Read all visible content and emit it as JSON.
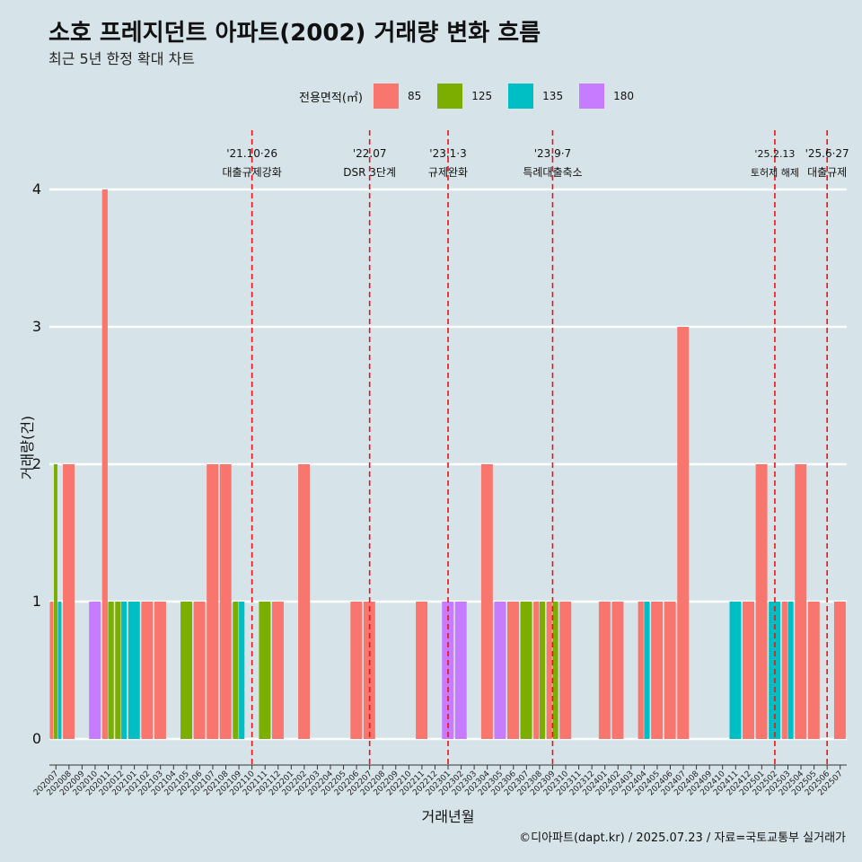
{
  "title": "소호 프레지던트 아파트(2002) 거래량 변화 흐름",
  "subtitle": "최근 5년 한정 확대 차트",
  "caption": "©디아파트(dapt.kr) / 2025.07.23 / 자료=국토교통부 실거래가",
  "legend": {
    "title": "전용면적(㎡)",
    "items": [
      {
        "label": "85",
        "color": "#f8766d"
      },
      {
        "label": "125",
        "color": "#7cae00"
      },
      {
        "label": "135",
        "color": "#00bfc4"
      },
      {
        "label": "180",
        "color": "#c77cff"
      }
    ]
  },
  "chart_data": {
    "type": "bar",
    "xlabel": "거래년월",
    "ylabel": "거래량(건)",
    "ylim": [
      0,
      4
    ],
    "yticks": [
      0,
      1,
      2,
      3,
      4
    ],
    "grid": true,
    "categories": [
      "202007",
      "202008",
      "202009",
      "202010",
      "202011",
      "202012",
      "202101",
      "202102",
      "202103",
      "202104",
      "202105",
      "202106",
      "202107",
      "202108",
      "202109",
      "202110",
      "202111",
      "202112",
      "202201",
      "202202",
      "202203",
      "202204",
      "202205",
      "202206",
      "202207",
      "202208",
      "202209",
      "202210",
      "202211",
      "202212",
      "202301",
      "202302",
      "202303",
      "202304",
      "202305",
      "202306",
      "202307",
      "202308",
      "202309",
      "202310",
      "202311",
      "202312",
      "202401",
      "202402",
      "202403",
      "202404",
      "202405",
      "202406",
      "202407",
      "202408",
      "202409",
      "202410",
      "202411",
      "202412",
      "202501",
      "202502",
      "202503",
      "202504",
      "202505",
      "202506",
      "202507"
    ],
    "series": [
      {
        "name": "85",
        "values": [
          1,
          2,
          0,
          0,
          4,
          0,
          0,
          1,
          1,
          0,
          0,
          1,
          2,
          2,
          0,
          0,
          0,
          1,
          0,
          2,
          0,
          0,
          0,
          1,
          1,
          0,
          0,
          0,
          1,
          0,
          0,
          0,
          0,
          2,
          0,
          1,
          0,
          1,
          1,
          1,
          0,
          0,
          1,
          1,
          0,
          1,
          1,
          1,
          3,
          0,
          0,
          0,
          0,
          1,
          2,
          0,
          1,
          2,
          1,
          0,
          1
        ]
      },
      {
        "name": "125",
        "values": [
          2,
          0,
          0,
          0,
          1,
          1,
          0,
          0,
          0,
          0,
          1,
          0,
          0,
          0,
          1,
          0,
          1,
          0,
          0,
          0,
          0,
          0,
          0,
          0,
          0,
          0,
          0,
          0,
          0,
          0,
          0,
          0,
          0,
          0,
          0,
          0,
          1,
          1,
          1,
          0,
          0,
          0,
          0,
          0,
          0,
          0,
          0,
          0,
          0,
          0,
          0,
          0,
          0,
          0,
          0,
          0,
          0,
          0,
          0,
          0,
          0
        ]
      },
      {
        "name": "135",
        "values": [
          1,
          0,
          0,
          0,
          0,
          1,
          1,
          0,
          0,
          0,
          0,
          0,
          0,
          0,
          1,
          0,
          0,
          0,
          0,
          0,
          0,
          0,
          0,
          0,
          0,
          0,
          0,
          0,
          0,
          0,
          0,
          0,
          0,
          0,
          0,
          0,
          0,
          0,
          0,
          0,
          0,
          0,
          0,
          0,
          0,
          1,
          0,
          0,
          0,
          0,
          0,
          0,
          1,
          0,
          0,
          1,
          1,
          0,
          0,
          0,
          0
        ]
      },
      {
        "name": "180",
        "values": [
          0,
          0,
          0,
          1,
          0,
          0,
          0,
          0,
          0,
          0,
          0,
          0,
          0,
          0,
          0,
          0,
          0,
          0,
          0,
          0,
          0,
          0,
          0,
          0,
          0,
          0,
          0,
          0,
          0,
          0,
          1,
          1,
          0,
          0,
          1,
          0,
          0,
          0,
          0,
          0,
          0,
          0,
          0,
          0,
          0,
          0,
          0,
          0,
          0,
          0,
          0,
          0,
          0,
          0,
          0,
          0,
          0,
          0,
          0,
          0,
          0
        ]
      }
    ],
    "events": [
      {
        "x": "202110",
        "date": "'21.10·26",
        "label": "대출규제강화"
      },
      {
        "x": "202207",
        "date": "'22.07",
        "label": "DSR 3단계"
      },
      {
        "x": "202301",
        "date": "'23.1·3",
        "label": "규제완화"
      },
      {
        "x": "202309",
        "date": "'23.9·7",
        "label": "특례대출축소"
      },
      {
        "x": "202502",
        "date": "'25.2.13",
        "label": "토허제 해제"
      },
      {
        "x": "202506",
        "date": "'25.6·27",
        "label": "대출규제"
      }
    ]
  }
}
